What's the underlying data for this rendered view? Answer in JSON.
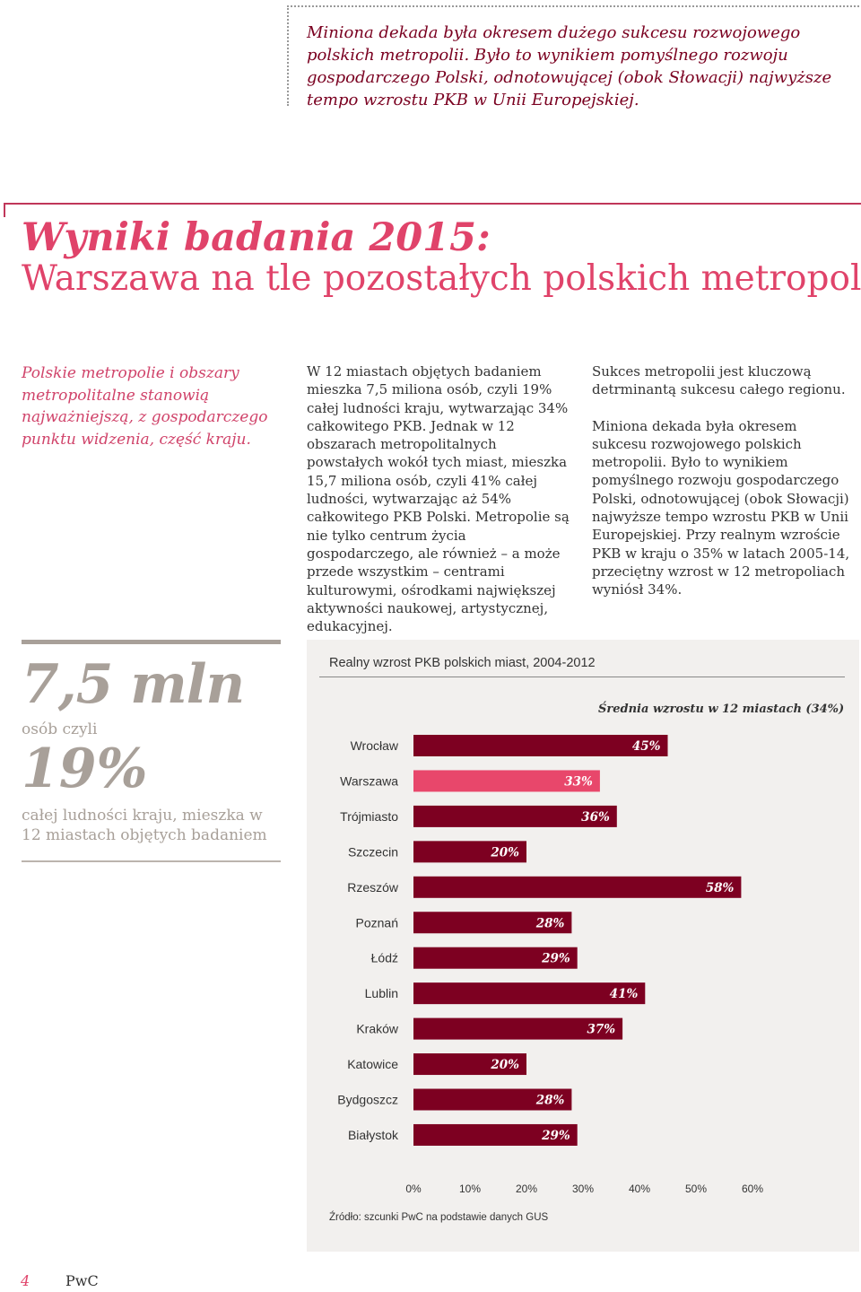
{
  "top_quote": "Miniona dekada była okresem dużego sukcesu rozwojowego polskich metropolii. Było to wynikiem pomyślnego rozwoju gospodarczego Polski, odnotowującej (obok Słowacji) najwyższe tempo wzrostu PKB w Unii Europejskiej.",
  "header": {
    "title": "Wyniki badania 2015:",
    "subtitle": "Warszawa na tle pozostałych polskich metropolii"
  },
  "intro": {
    "lead": "Polskie metropolie i obszary metropolitalne stanowią najważniejszą, z gospodarczego punktu widzenia, część kraju.",
    "middle": "W 12 miastach objętych badaniem mieszka 7,5 miliona osób, czyli 19% całej ludności kraju, wytwarzając 34% całkowitego PKB. Jednak w 12 obszarach metropolitalnych powstałych wokół tych miast, mieszka 15,7 miliona osób, czyli 41% całej ludności, wytwarzając aż 54% całkowitego PKB Polski. Metropolie są nie tylko centrum życia gospodarczego, ale również – a może przede wszystkim – centrami kulturowymi, ośrodkami największej aktywności naukowej, artystycznej, edukacyjnej.",
    "right_p1": "Sukces metropolii jest kluczową detrminantą sukcesu całego regionu.",
    "right_p2": "Miniona dekada była okresem sukcesu rozwojowego polskich metropolii. Było to wynikiem pomyślnego rozwoju gospodarczego Polski, odnotowującej (obok Słowacji) najwyższe tempo wzrostu PKB w Unii Europejskiej. Przy realnym wzroście PKB w kraju o 35% w latach 2005-14, przeciętny wzrost w 12 metropoliach wyniósł 34%."
  },
  "stat": {
    "big_value": "7,5 mln",
    "caption1": "osób czyli",
    "percent": "19%",
    "caption2": "całej ludności kraju, mieszka w 12 miastach objętych badaniem"
  },
  "chart_data": {
    "type": "bar",
    "orientation": "horizontal",
    "title": "Realny wzrost PKB polskich miast, 2004-2012",
    "annotation": "Średnia wzrostu w 12 miastach (34%)",
    "categories": [
      "Wrocław",
      "Warszawa",
      "Trójmiasto",
      "Szczecin",
      "Rzeszów",
      "Poznań",
      "Łódź",
      "Lublin",
      "Kraków",
      "Katowice",
      "Bydgoszcz",
      "Białystok"
    ],
    "values": [
      45,
      33,
      36,
      20,
      58,
      28,
      29,
      41,
      37,
      20,
      28,
      29
    ],
    "value_labels": [
      "45%",
      "33%",
      "36%",
      "20%",
      "58%",
      "28%",
      "29%",
      "41%",
      "37%",
      "20%",
      "28%",
      "29%"
    ],
    "highlight_category": "Warszawa",
    "xlim": [
      0,
      60
    ],
    "x_ticks": [
      "0%",
      "10%",
      "20%",
      "30%",
      "40%",
      "50%",
      "60%"
    ],
    "colors": {
      "bar": "#7d0021",
      "highlight": "#e8476b",
      "label": "#ffffff"
    },
    "source": "Źródło: szcunki PwC na podstawie danych GUS"
  },
  "footer": {
    "page_number": "4",
    "brand": "PwC"
  }
}
